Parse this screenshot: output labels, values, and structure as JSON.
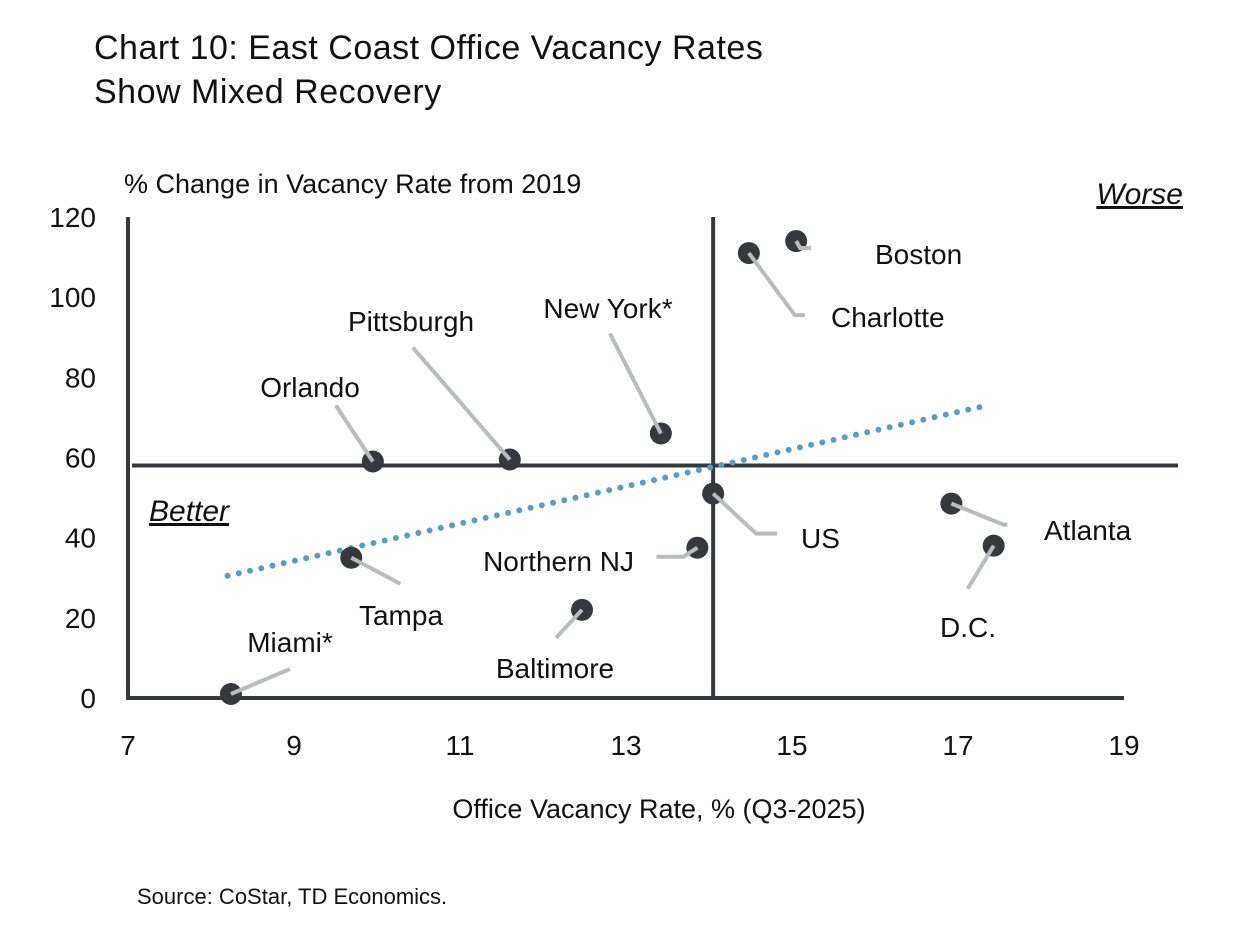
{
  "title_line1": "Chart 10: East Coast Office Vacancy Rates",
  "title_line2": "Show Mixed Recovery",
  "source": "Source: CoStar, TD Economics.",
  "chart_data": {
    "type": "scatter",
    "title": "Chart 10: East Coast Office Vacancy Rates Show Mixed Recovery",
    "xlabel": "Office Vacancy Rate, % (Q3-2025)",
    "ylabel": "% Change in Vacancy Rate from 2019",
    "xlim": [
      7,
      19
    ],
    "ylim": [
      0,
      120
    ],
    "xticks": [
      7,
      9,
      11,
      13,
      15,
      17,
      19
    ],
    "yticks": [
      0,
      20,
      40,
      60,
      80,
      100,
      120
    ],
    "grid": false,
    "quadrant_labels": {
      "top_right": "Worse",
      "bottom_left": "Better"
    },
    "reference_lines": {
      "x": 14.05,
      "y": 58
    },
    "trendline": {
      "style": "dotted",
      "color": "#5b9bc4",
      "from": [
        8.2,
        30.5
      ],
      "to": [
        17.35,
        73
      ]
    },
    "point_color": "#35383d",
    "leader_color": "#b9bcbf",
    "points": [
      {
        "label": "Miami*",
        "x": 8.24,
        "y": 1
      },
      {
        "label": "Tampa",
        "x": 9.69,
        "y": 35
      },
      {
        "label": "Orlando",
        "x": 9.95,
        "y": 59
      },
      {
        "label": "Pittsburgh",
        "x": 11.6,
        "y": 59.5
      },
      {
        "label": "Baltimore",
        "x": 12.47,
        "y": 22
      },
      {
        "label": "Northern NJ",
        "x": 13.86,
        "y": 37.5
      },
      {
        "label": "New York*",
        "x": 13.42,
        "y": 66
      },
      {
        "label": "US",
        "x": 14.05,
        "y": 51
      },
      {
        "label": "Charlotte",
        "x": 14.48,
        "y": 111
      },
      {
        "label": "Boston",
        "x": 15.05,
        "y": 114
      },
      {
        "label": "Atlanta",
        "x": 16.92,
        "y": 48.5
      },
      {
        "label": "D.C.",
        "x": 17.43,
        "y": 38
      }
    ]
  }
}
